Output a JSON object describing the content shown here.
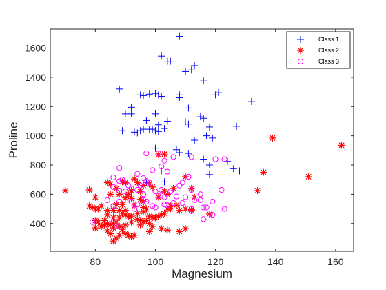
{
  "chart_data": {
    "type": "scatter",
    "xlabel": "Magnesium",
    "ylabel": "Proline",
    "xlim": [
      65,
      166
    ],
    "ylim": [
      210,
      1730
    ],
    "xticks": [
      80,
      100,
      120,
      140,
      160
    ],
    "yticks": [
      400,
      600,
      800,
      1000,
      1200,
      1400,
      1600
    ],
    "xtick_labels": [
      "80",
      "100",
      "120",
      "140",
      "160"
    ],
    "ytick_labels": [
      "400",
      "600",
      "800",
      "1000",
      "1200",
      "1400",
      "1600"
    ],
    "grid": false,
    "legend_position": "top-right",
    "series": [
      {
        "name": "Class 1",
        "marker": "plus",
        "color": "#0000ff",
        "points": [
          [
            108,
            1680
          ],
          [
            102,
            1545
          ],
          [
            104,
            1510
          ],
          [
            105,
            1510
          ],
          [
            113,
            1480
          ],
          [
            112,
            1450
          ],
          [
            110,
            1440
          ],
          [
            116,
            1375
          ],
          [
            88,
            1320
          ],
          [
            100,
            1290
          ],
          [
            98,
            1285
          ],
          [
            95,
            1280
          ],
          [
            96,
            1275
          ],
          [
            101,
            1280
          ],
          [
            102,
            1270
          ],
          [
            108,
            1280
          ],
          [
            120,
            1280
          ],
          [
            121,
            1295
          ],
          [
            108,
            1260
          ],
          [
            132,
            1235
          ],
          [
            92,
            1195
          ],
          [
            111,
            1190
          ],
          [
            90,
            1150
          ],
          [
            92,
            1150
          ],
          [
            100,
            1150
          ],
          [
            115,
            1130
          ],
          [
            116,
            1120
          ],
          [
            97,
            1105
          ],
          [
            104,
            1100
          ],
          [
            110,
            1095
          ],
          [
            111,
            1080
          ],
          [
            101,
            1075
          ],
          [
            103,
            1050
          ],
          [
            118,
            1060
          ],
          [
            127,
            1065
          ],
          [
            96,
            1045
          ],
          [
            98,
            1045
          ],
          [
            99,
            1045
          ],
          [
            94,
            1020
          ],
          [
            95,
            1035
          ],
          [
            100,
            1035
          ],
          [
            101,
            1030
          ],
          [
            89,
            1035
          ],
          [
            93,
            1025
          ],
          [
            117,
            1000
          ],
          [
            119,
            985
          ],
          [
            113,
            970
          ],
          [
            107,
            905
          ],
          [
            108,
            885
          ],
          [
            100,
            915
          ],
          [
            111,
            880
          ],
          [
            124,
            825
          ],
          [
            116,
            840
          ],
          [
            118,
            800
          ],
          [
            126,
            775
          ],
          [
            128,
            760
          ],
          [
            102,
            760
          ],
          [
            118,
            735
          ],
          [
            103,
            685
          ],
          [
            97,
            680
          ]
        ]
      },
      {
        "name": "Class 2",
        "marker": "asterisk",
        "color": "#ff0000",
        "points": [
          [
            162,
            935
          ],
          [
            139,
            985
          ],
          [
            151,
            720
          ],
          [
            136,
            750
          ],
          [
            134,
            625
          ],
          [
            70,
            625
          ],
          [
            78,
            630
          ],
          [
            84,
            680
          ],
          [
            85,
            670
          ],
          [
            87,
            640
          ],
          [
            89,
            685
          ],
          [
            90,
            680
          ],
          [
            92,
            625
          ],
          [
            93,
            705
          ],
          [
            94,
            680
          ],
          [
            95,
            620
          ],
          [
            96,
            660
          ],
          [
            98,
            670
          ],
          [
            99,
            650
          ],
          [
            101,
            870
          ],
          [
            101,
            580
          ],
          [
            103,
            875
          ],
          [
            103,
            620
          ],
          [
            104,
            600
          ],
          [
            106,
            640
          ],
          [
            110,
            720
          ],
          [
            112,
            640
          ],
          [
            113,
            580
          ],
          [
            80,
            580
          ],
          [
            85,
            600
          ],
          [
            88,
            600
          ],
          [
            90,
            575
          ],
          [
            92,
            570
          ],
          [
            95,
            565
          ],
          [
            96,
            550
          ],
          [
            78,
            520
          ],
          [
            79,
            510
          ],
          [
            80,
            500
          ],
          [
            81,
            500
          ],
          [
            84,
            490
          ],
          [
            86,
            490
          ],
          [
            88,
            490
          ],
          [
            89,
            470
          ],
          [
            90,
            460
          ],
          [
            91,
            450
          ],
          [
            92,
            450
          ],
          [
            94,
            470
          ],
          [
            96,
            510
          ],
          [
            97,
            500
          ],
          [
            98,
            450
          ],
          [
            99,
            440
          ],
          [
            100,
            440
          ],
          [
            101,
            450
          ],
          [
            102,
            460
          ],
          [
            103,
            470
          ],
          [
            104,
            500
          ],
          [
            105,
            520
          ],
          [
            107,
            525
          ],
          [
            108,
            490
          ],
          [
            110,
            500
          ],
          [
            112,
            490
          ],
          [
            118,
            465
          ],
          [
            80,
            420
          ],
          [
            81,
            410
          ],
          [
            82,
            380
          ],
          [
            83,
            390
          ],
          [
            84,
            400
          ],
          [
            85,
            390
          ],
          [
            86,
            370
          ],
          [
            87,
            410
          ],
          [
            88,
            380
          ],
          [
            89,
            360
          ],
          [
            90,
            330
          ],
          [
            91,
            320
          ],
          [
            92,
            310
          ],
          [
            93,
            320
          ],
          [
            84,
            350
          ],
          [
            85,
            330
          ],
          [
            86,
            280
          ],
          [
            87,
            300
          ],
          [
            88,
            320
          ],
          [
            94,
            430
          ],
          [
            95,
            420
          ],
          [
            96,
            410
          ],
          [
            97,
            420
          ],
          [
            98,
            400
          ],
          [
            99,
            380
          ],
          [
            102,
            365
          ],
          [
            104,
            355
          ],
          [
            108,
            345
          ],
          [
            110,
            365
          ],
          [
            80,
            370
          ],
          [
            86,
            440
          ],
          [
            88,
            440
          ],
          [
            90,
            490
          ],
          [
            93,
            520
          ],
          [
            96,
            480
          ],
          [
            98,
            345
          ],
          [
            100,
            440
          ],
          [
            84,
            460
          ],
          [
            83,
            420
          ],
          [
            86,
            400
          ],
          [
            90,
            390
          ],
          [
            92,
            410
          ],
          [
            95,
            390
          ],
          [
            82,
            520
          ],
          [
            87,
            530
          ],
          [
            89,
            530
          ],
          [
            91,
            600
          ],
          [
            105,
            500
          ],
          [
            112,
            495
          ]
        ]
      },
      {
        "name": "Class 3",
        "marker": "circle",
        "color": "#ff00ff",
        "points": [
          [
            97,
            880
          ],
          [
            101,
            880
          ],
          [
            103,
            830
          ],
          [
            106,
            855
          ],
          [
            112,
            855
          ],
          [
            120,
            840
          ],
          [
            123,
            840
          ],
          [
            102,
            790
          ],
          [
            88,
            780
          ],
          [
            99,
            765
          ],
          [
            104,
            755
          ],
          [
            111,
            720
          ],
          [
            94,
            740
          ],
          [
            96,
            710
          ],
          [
            86,
            715
          ],
          [
            88,
            690
          ],
          [
            89,
            700
          ],
          [
            91,
            660
          ],
          [
            92,
            640
          ],
          [
            95,
            660
          ],
          [
            97,
            690
          ],
          [
            98,
            680
          ],
          [
            86,
            650
          ],
          [
            88,
            625
          ],
          [
            90,
            620
          ],
          [
            94,
            630
          ],
          [
            96,
            600
          ],
          [
            100,
            620
          ],
          [
            102,
            630
          ],
          [
            105,
            620
          ],
          [
            108,
            660
          ],
          [
            109,
            680
          ],
          [
            112,
            630
          ],
          [
            115,
            600
          ],
          [
            122,
            630
          ],
          [
            107,
            585
          ],
          [
            101,
            590
          ],
          [
            103,
            580
          ],
          [
            110,
            580
          ],
          [
            113,
            560
          ],
          [
            115,
            560
          ],
          [
            119,
            550
          ],
          [
            97,
            550
          ],
          [
            92,
            550
          ],
          [
            84,
            560
          ],
          [
            88,
            550
          ],
          [
            86,
            520
          ],
          [
            94,
            530
          ],
          [
            99,
            520
          ],
          [
            103,
            530
          ],
          [
            106,
            540
          ],
          [
            109,
            540
          ],
          [
            112,
            500
          ],
          [
            116,
            510
          ],
          [
            117,
            510
          ],
          [
            123,
            500
          ],
          [
            104,
            525
          ],
          [
            100,
            510
          ],
          [
            79,
            410
          ],
          [
            86,
            410
          ],
          [
            88,
            380
          ],
          [
            96,
            560
          ],
          [
            116,
            430
          ],
          [
            119,
            460
          ],
          [
            112,
            485
          ],
          [
            93,
            500
          ]
        ]
      }
    ]
  }
}
